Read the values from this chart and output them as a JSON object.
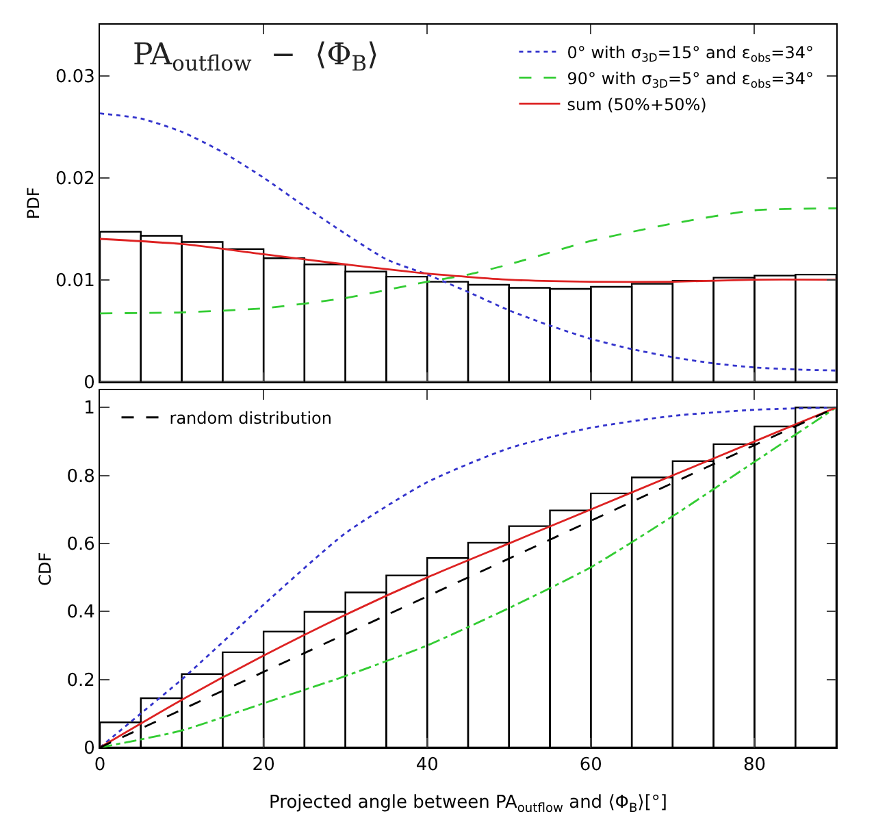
{
  "chart_data": [
    {
      "type": "histogram",
      "title": "PA$_{outflow}$  −  ⟨Φ$_{B}$⟩",
      "ylabel": "PDF",
      "color": "#000000",
      "bins": [
        0,
        5,
        10,
        15,
        20,
        25,
        30,
        35,
        40,
        45,
        50,
        55,
        60,
        65,
        70,
        75,
        80,
        85,
        90
      ],
      "values": [
        0.0147,
        0.0143,
        0.0137,
        0.013,
        0.0121,
        0.0115,
        0.0108,
        0.0103,
        0.0098,
        0.0095,
        0.0092,
        0.0091,
        0.0093,
        0.0096,
        0.0099,
        0.0102,
        0.0104,
        0.0105
      ],
      "series": [
        {
          "type": "line",
          "name": "0° with σ$_{3D}$=15° and ε$_{obs}$=34°",
          "color": "#3333cc",
          "line_style": "dotted",
          "x": [
            0,
            5,
            10,
            15,
            20,
            25,
            30,
            35,
            40,
            45,
            50,
            55,
            60,
            65,
            70,
            75,
            80,
            85,
            90
          ],
          "values": [
            0.0263,
            0.0258,
            0.0245,
            0.0225,
            0.02,
            0.0172,
            0.0145,
            0.012,
            0.0105,
            0.0088,
            0.007,
            0.0055,
            0.0042,
            0.0032,
            0.0024,
            0.0018,
            0.0014,
            0.0012,
            0.0011
          ]
        },
        {
          "type": "line",
          "name": "90° with σ$_{3D}$=5° and ε$_{obs}$=34°",
          "color": "#33cc33",
          "line_style": "dashed",
          "x": [
            0,
            10,
            20,
            30,
            40,
            45,
            50,
            60,
            70,
            80,
            90
          ],
          "values": [
            0.0067,
            0.0068,
            0.0072,
            0.0082,
            0.0098,
            0.0105,
            0.0115,
            0.0138,
            0.0155,
            0.0168,
            0.017
          ]
        },
        {
          "type": "line",
          "name": "sum (50%+50%)",
          "color": "#dd2222",
          "line_style": "solid",
          "x": [
            0,
            10,
            20,
            30,
            40,
            50,
            60,
            70,
            80,
            90
          ],
          "values": [
            0.014,
            0.0135,
            0.0125,
            0.0115,
            0.0106,
            0.01,
            0.0098,
            0.0098,
            0.01,
            0.01
          ]
        }
      ],
      "xlim": [
        0,
        90
      ],
      "xticks": [
        0,
        20,
        40,
        60,
        80
      ],
      "ylim": [
        0,
        0.035
      ],
      "yticks": [
        0,
        0.01,
        0.02,
        0.03
      ],
      "tick_labels": "y",
      "legend": "top right"
    },
    {
      "type": "histogram",
      "xlabel": "Projected angle between PA$_{outflow}$ and ⟨Φ$_{B}$⟩[°]",
      "ylabel": "CDF",
      "color": "#000000",
      "bins": [
        0,
        5,
        10,
        15,
        20,
        25,
        30,
        35,
        40,
        45,
        50,
        55,
        60,
        65,
        70,
        75,
        80,
        85,
        90
      ],
      "values": [
        0.074,
        0.145,
        0.216,
        0.28,
        0.341,
        0.399,
        0.456,
        0.506,
        0.557,
        0.602,
        0.651,
        0.697,
        0.747,
        0.794,
        0.842,
        0.892,
        0.944,
        1.0
      ],
      "series": [
        {
          "type": "line",
          "color": "#3333cc",
          "line_style": "dotted",
          "x": [
            0,
            5,
            10,
            20,
            30,
            40,
            50,
            60,
            70,
            80,
            90
          ],
          "values": [
            0,
            0.1,
            0.2,
            0.42,
            0.63,
            0.78,
            0.88,
            0.94,
            0.975,
            0.993,
            1
          ]
        },
        {
          "type": "line",
          "color": "#33cc33",
          "line_style": "dashdot",
          "x": [
            0,
            10,
            20,
            30,
            40,
            50,
            60,
            70,
            80,
            90
          ],
          "values": [
            0,
            0.05,
            0.13,
            0.21,
            0.3,
            0.41,
            0.53,
            0.68,
            0.84,
            1
          ]
        },
        {
          "type": "line",
          "color": "#dd2222",
          "line_style": "solid",
          "x": [
            0,
            10,
            20,
            30,
            40,
            50,
            60,
            70,
            80,
            90
          ],
          "values": [
            0,
            0.14,
            0.27,
            0.39,
            0.5,
            0.6,
            0.7,
            0.8,
            0.9,
            1
          ]
        },
        {
          "type": "line",
          "name": "random distribution",
          "color": "#000000",
          "line_style": "dashed",
          "x": [
            0,
            90
          ],
          "values": [
            0,
            1
          ]
        }
      ],
      "xlim": [
        0,
        90
      ],
      "xticks": [
        0,
        20,
        40,
        60,
        80
      ],
      "ylim": [
        0,
        1.05
      ],
      "yticks": [
        0,
        0.2,
        0.4,
        0.6,
        0.8,
        1
      ],
      "legend": "top left"
    }
  ]
}
